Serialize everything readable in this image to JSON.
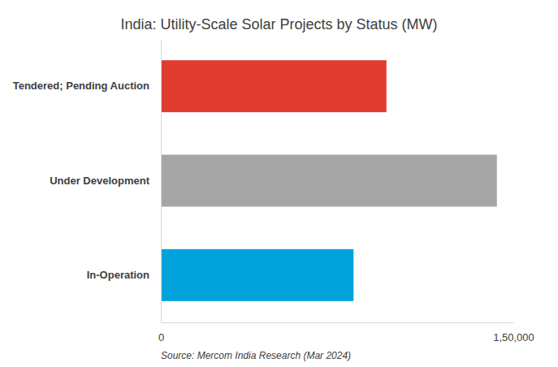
{
  "chart_data": {
    "type": "bar",
    "orientation": "horizontal",
    "title": "India: Utility-Scale Solar Projects by Status (MW)",
    "source": "Source: Mercom India Research (Mar 2024)",
    "categories": [
      "Tendered; Pending Auction",
      "Under Development",
      "In-Operation"
    ],
    "values": [
      96000,
      143000,
      82000
    ],
    "colors": [
      "#e03c31",
      "#a6a6a6",
      "#00a2db"
    ],
    "xlim": [
      0,
      150000
    ],
    "xticks": [
      0,
      {
        "value": 150000,
        "label": "1,50,000"
      }
    ],
    "grid": false
  }
}
